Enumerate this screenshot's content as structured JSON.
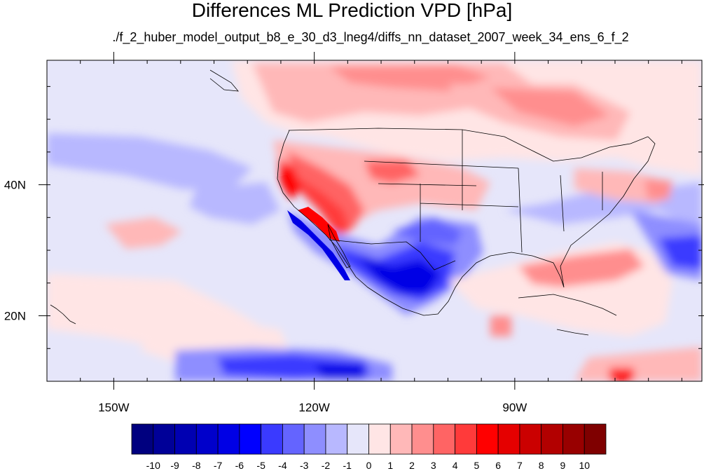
{
  "title": "Differences ML Prediction VPD [hPa]",
  "subtitle": "./f_2_huber_model_output_b8_e_30_d3_lneg4/diffs_nn_dataset_2007_week_34_ens_6_f_2",
  "map": {
    "lon_range": [
      -160,
      -62
    ],
    "lat_range": [
      10,
      59
    ],
    "lon_ticks": [
      {
        "value": -150,
        "label": "150W"
      },
      {
        "value": -120,
        "label": "120W"
      },
      {
        "value": -90,
        "label": "90W"
      }
    ],
    "lat_ticks": [
      {
        "value": 20,
        "label": "20N"
      },
      {
        "value": 40,
        "label": "40N"
      }
    ],
    "minor_lon_step": 5,
    "minor_lat_step": 5
  },
  "colorbar": {
    "labels": [
      "-10",
      "-9",
      "-8",
      "-7",
      "-6",
      "-5",
      "-4",
      "-3",
      "-2",
      "-1",
      "0",
      "1",
      "2",
      "3",
      "4",
      "5",
      "6",
      "7",
      "8",
      "9",
      "10"
    ],
    "colors": [
      "#00007f",
      "#000098",
      "#0000b2",
      "#0000cb",
      "#0000e5",
      "#0000ff",
      "#3a3aff",
      "#6464ff",
      "#8e8eff",
      "#b8b8ff",
      "#e6e6fa",
      "#ffe5e5",
      "#ffb8b8",
      "#ff8e8e",
      "#ff6464",
      "#ff3a3a",
      "#ff0000",
      "#e50000",
      "#cb0000",
      "#b20000",
      "#980000",
      "#7f0000"
    ]
  }
}
